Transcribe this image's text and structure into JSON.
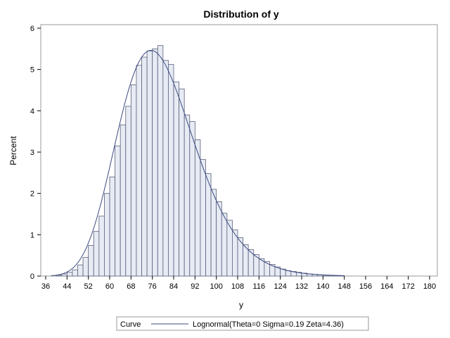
{
  "chart_data": {
    "type": "bar",
    "title": "Distribution of y",
    "xlabel": "y",
    "ylabel": "Percent",
    "xlim": [
      36,
      180
    ],
    "ylim": [
      0,
      6
    ],
    "x_ticks": [
      36,
      44,
      52,
      60,
      68,
      76,
      84,
      92,
      100,
      108,
      116,
      124,
      132,
      140,
      148,
      156,
      164,
      172,
      180
    ],
    "y_ticks": [
      0,
      1,
      2,
      3,
      4,
      5,
      6
    ],
    "bin_width": 2,
    "bin_starts": [
      40,
      42,
      44,
      46,
      48,
      50,
      52,
      54,
      56,
      58,
      60,
      62,
      64,
      66,
      68,
      70,
      72,
      74,
      76,
      78,
      80,
      82,
      84,
      86,
      88,
      90,
      92,
      94,
      96,
      98,
      100,
      102,
      104,
      106,
      108,
      110,
      112,
      114,
      116,
      118,
      120,
      122,
      124,
      126,
      128,
      130,
      132,
      134,
      136,
      138,
      140,
      142,
      144,
      146
    ],
    "values": [
      0.02,
      0.05,
      0.09,
      0.15,
      0.27,
      0.45,
      0.74,
      1.08,
      1.45,
      2.0,
      2.4,
      3.15,
      3.66,
      4.11,
      4.63,
      5.1,
      5.3,
      5.45,
      5.5,
      5.58,
      5.22,
      5.12,
      4.7,
      4.53,
      3.9,
      3.74,
      3.3,
      2.82,
      2.48,
      2.1,
      1.8,
      1.52,
      1.35,
      1.12,
      0.93,
      0.76,
      0.64,
      0.52,
      0.42,
      0.35,
      0.28,
      0.22,
      0.17,
      0.13,
      0.11,
      0.09,
      0.07,
      0.05,
      0.04,
      0.03,
      0.02,
      0.02,
      0.01,
      0.01
    ],
    "curve": {
      "name": "Lognormal(Theta=0 Sigma=0.19 Zeta=4.36)",
      "theta": 0,
      "sigma": 0.19,
      "zeta": 4.36,
      "x_range": [
        38,
        148
      ]
    },
    "legend": {
      "title": "Curve",
      "position": "bottom"
    },
    "colors": {
      "bar_fill": "#e7ebf4",
      "bar_stroke": "#5a5f7a",
      "curve": "#3c4a82",
      "frame": "#9a9a9a"
    }
  }
}
